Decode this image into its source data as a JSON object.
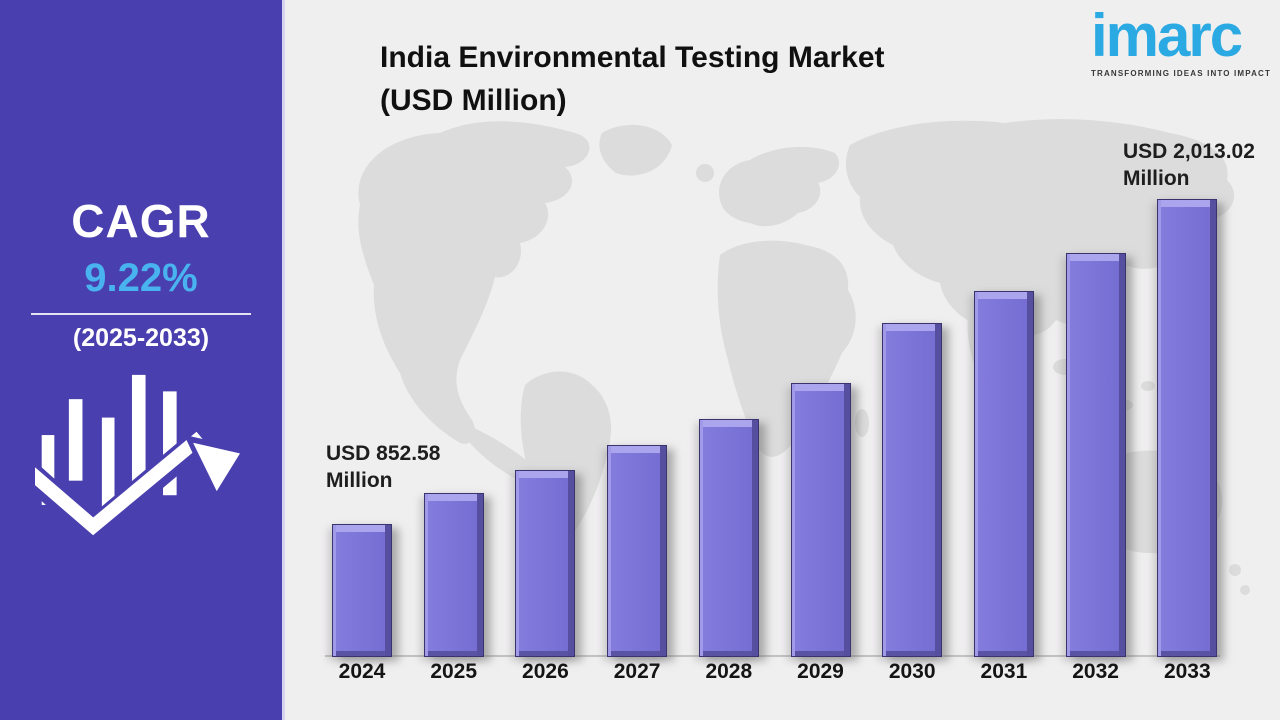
{
  "title": {
    "line1": "India Environmental Testing Market",
    "line2": "(USD Million)"
  },
  "logo": {
    "wordmark": "imarc",
    "tagline": "TRANSFORMING IDEAS INTO IMPACT",
    "wordmark_color": "#2ba9e2"
  },
  "sidebar": {
    "cagr_label": "CAGR",
    "cagr_value": "9.22%",
    "period": "(2025-2033)",
    "bg_color": "#4a3fae",
    "value_color": "#49b3f0",
    "icon": "growth-arrow-chart"
  },
  "callouts": {
    "first": {
      "year": "2024",
      "line1": "USD 852.58",
      "line2": "Million"
    },
    "last": {
      "year": "2033",
      "line1": "USD 2,013.02",
      "line2": "Million"
    }
  },
  "chart_data": {
    "type": "bar",
    "title": "India Environmental Testing Market (USD Million)",
    "unit": "USD Million",
    "categories": [
      "2024",
      "2025",
      "2026",
      "2027",
      "2028",
      "2029",
      "2030",
      "2031",
      "2032",
      "2033"
    ],
    "values": [
      852.58,
      963,
      1046,
      1135,
      1228,
      1356,
      1570,
      1685,
      1820,
      2013.02
    ],
    "labeled_points": [
      {
        "year": "2024",
        "label": "USD 852.58 Million"
      },
      {
        "year": "2033",
        "label": "USD 2,013.02 Million"
      }
    ],
    "values_note": "Only 2024 and 2033 are labeled in the image; 2025-2032 estimated from bar heights",
    "bar_color": "#7b74d7",
    "xlabel": "",
    "ylabel": "",
    "y_axis_visible": false,
    "gridlines": false,
    "legend": "none",
    "background": "world-map-silhouette"
  },
  "colors": {
    "panel_bg": "#f0eff0",
    "map_gray": "#dcdcdc",
    "axis_line": "#c2c2c2",
    "text_dark": "#141414"
  }
}
